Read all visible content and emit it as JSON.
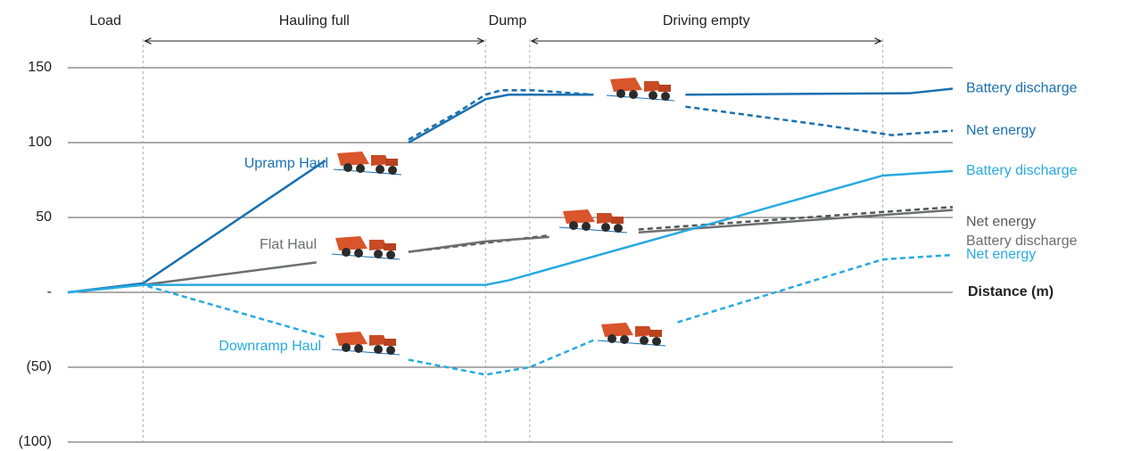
{
  "chart_data": {
    "type": "line",
    "phases": [
      "Load",
      "Hauling full",
      "Dump",
      "Driving empty"
    ],
    "phase_lines": [
      8.5,
      47.2,
      52.2,
      92.1
    ],
    "x_label": "Distance (m)",
    "annotations": [
      {
        "text": "Upramp Haul",
        "color": "#1a70b0"
      },
      {
        "text": "Flat Haul",
        "color": "#6d6e71"
      },
      {
        "text": "Downramp Haul",
        "color": "#27aae1"
      }
    ],
    "xlim": [
      0,
      100
    ],
    "ylim": [
      -100,
      150
    ],
    "yticks": [
      {
        "value": -100,
        "label": "(100)"
      },
      {
        "value": -50,
        "label": "(50)"
      },
      {
        "value": 0,
        "label": "-"
      },
      50,
      100,
      150
    ],
    "grid": true,
    "series": [
      {
        "name": "Net energy",
        "color": "#555658",
        "dashed": true,
        "x": [
          38.5,
          54.4,
          null,
          64.5,
          100
        ],
        "values": [
          27,
          38,
          null,
          42,
          57
        ]
      },
      {
        "name": "Battery discharge",
        "color": "#6d6e71",
        "dashed": false,
        "x": [
          0,
          8.5,
          28.1,
          null,
          38.5,
          47.2,
          54.4,
          null,
          64.5,
          100
        ],
        "values": [
          0,
          5,
          20,
          null,
          27,
          34,
          37,
          null,
          40,
          55
        ]
      },
      {
        "name": "Battery discharge",
        "color": "#1a70b0",
        "dashed": false,
        "x": [
          0,
          8.5,
          29.1,
          null,
          38.5,
          47.2,
          49.8,
          59.4,
          null,
          69.8,
          95.2,
          100
        ],
        "values": [
          0,
          6,
          88,
          null,
          100,
          129,
          132,
          132,
          null,
          132,
          133,
          136
        ]
      },
      {
        "name": "Net energy",
        "color": "#1a70b0",
        "dashed": true,
        "x": [
          38.5,
          44,
          47.2,
          49,
          52.5,
          59.4,
          null,
          69.8,
          85,
          93.1,
          100
        ],
        "values": [
          102,
          120,
          132,
          135,
          135,
          132,
          null,
          124,
          112,
          105,
          108
        ]
      },
      {
        "name": "Battery discharge",
        "color": "#27aae1",
        "dashed": false,
        "x": [
          0,
          8.5,
          47.2,
          49.8,
          92.1,
          100
        ],
        "values": [
          0,
          5,
          5,
          8,
          78,
          81
        ]
      },
      {
        "name": "Net energy",
        "color": "#27aae1",
        "dashed": true,
        "x": [
          0,
          8.5,
          29.1,
          null,
          38.5,
          47.2,
          52.2,
          59.4,
          null,
          68.9,
          92.1,
          100
        ],
        "values": [
          0,
          5,
          -30,
          null,
          -45,
          -55,
          -50,
          -32,
          null,
          -20,
          22,
          25
        ]
      }
    ]
  }
}
